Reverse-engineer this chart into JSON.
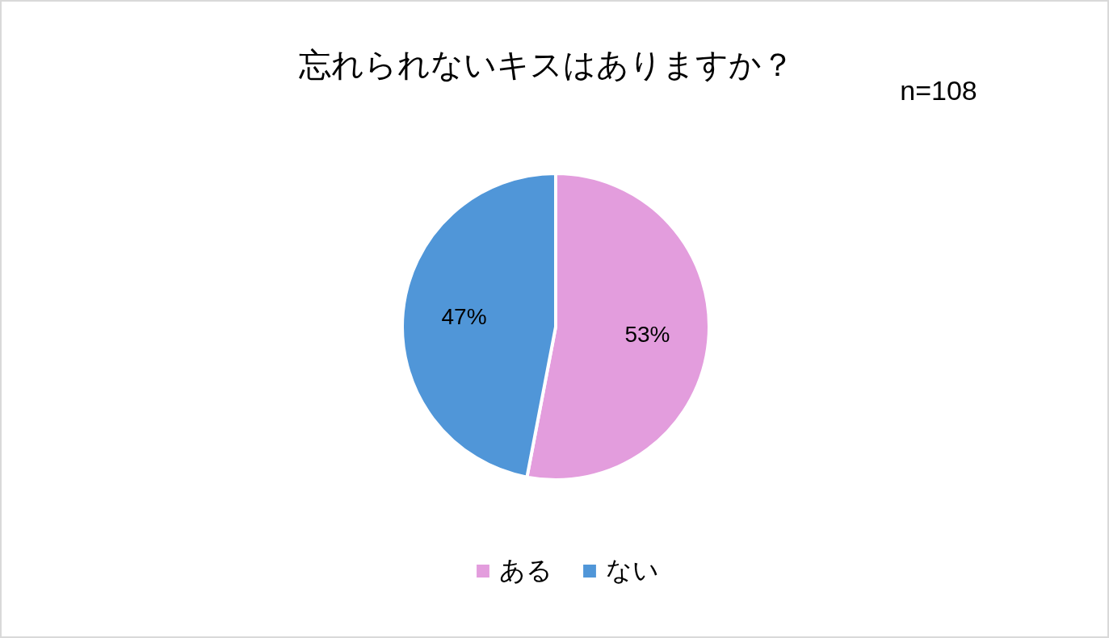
{
  "chart_data": {
    "type": "pie",
    "title": "忘れられないキスはありますか？",
    "annotations": [
      "n=108"
    ],
    "categories": [
      "ある",
      "ない"
    ],
    "values": [
      53,
      47
    ],
    "value_labels": [
      "53%",
      "47%"
    ],
    "colors": [
      "#e39ddd",
      "#5096d8"
    ],
    "legend": "bottom"
  }
}
